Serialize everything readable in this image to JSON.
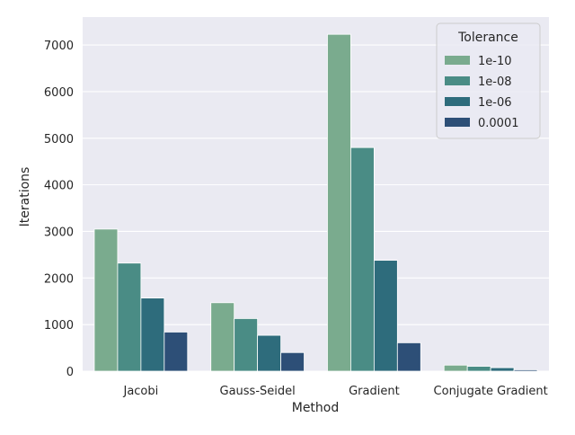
{
  "chart_data": {
    "type": "bar",
    "title": "",
    "xlabel": "Method",
    "ylabel": "Iterations",
    "categories": [
      "Jacobi",
      "Gauss-Seidel",
      "Gradient",
      "Conjugate Gradient"
    ],
    "ylim": [
      0,
      7600
    ],
    "yticks": [
      0,
      1000,
      2000,
      3000,
      4000,
      5000,
      6000,
      7000
    ],
    "legend": {
      "title": "Tolerance",
      "location": "top-right"
    },
    "grid": true,
    "series": [
      {
        "name": "1e-10",
        "color": "#7aab8e",
        "values": [
          3050,
          1470,
          7230,
          130
        ]
      },
      {
        "name": "1e-08",
        "color": "#4a8c85",
        "values": [
          2320,
          1130,
          4800,
          105
        ]
      },
      {
        "name": "1e-06",
        "color": "#2e6c7c",
        "values": [
          1570,
          770,
          2380,
          75
        ]
      },
      {
        "name": "0.0001",
        "color": "#2d4f77",
        "values": [
          840,
          400,
          610,
          30
        ]
      }
    ]
  }
}
